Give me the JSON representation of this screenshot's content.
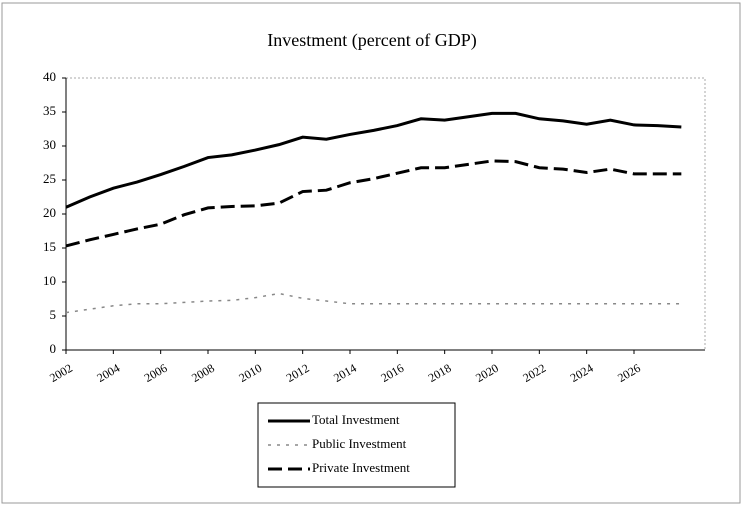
{
  "chart_data": {
    "type": "line",
    "title": "Investment (percent of GDP)",
    "x": [
      2002,
      2003,
      2004,
      2005,
      2006,
      2007,
      2008,
      2009,
      2010,
      2011,
      2012,
      2013,
      2014,
      2015,
      2016,
      2017,
      2018,
      2019,
      2020,
      2021,
      2022,
      2023,
      2024,
      2025,
      2026,
      2027,
      2028
    ],
    "series": [
      {
        "name": "Total Investment",
        "color": "#000000",
        "dash": "solid",
        "values": [
          21,
          22.5,
          23.8,
          24.7,
          25.8,
          27,
          28.3,
          28.7,
          29.4,
          30.2,
          31.3,
          31,
          31.7,
          32.3,
          33,
          34,
          33.8,
          34.3,
          34.8,
          34.8,
          34,
          33.7,
          33.2,
          33.8,
          33.1,
          33,
          32.8
        ]
      },
      {
        "name": "Public Investment",
        "color": "#888888",
        "dash": "dotted",
        "values": [
          5.5,
          6,
          6.5,
          6.8,
          6.8,
          7,
          7.2,
          7.3,
          7.7,
          8.3,
          7.6,
          7.2,
          6.8,
          6.8,
          6.8,
          6.8,
          6.8,
          6.8,
          6.8,
          6.8,
          6.8,
          6.8,
          6.8,
          6.8,
          6.8,
          6.8,
          6.8
        ]
      },
      {
        "name": "Private Investment",
        "color": "#000000",
        "dash": "dashed",
        "values": [
          15.3,
          16.2,
          17,
          17.8,
          18.5,
          19.9,
          20.9,
          21.1,
          21.2,
          21.6,
          23.3,
          23.5,
          24.6,
          25.2,
          26,
          26.8,
          26.8,
          27.3,
          27.8,
          27.7,
          26.8,
          26.6,
          26.1,
          26.6,
          25.9,
          25.9,
          25.9
        ]
      }
    ],
    "xlim": [
      2002,
      2029
    ],
    "xticks": [
      2002,
      2004,
      2006,
      2008,
      2010,
      2012,
      2014,
      2016,
      2018,
      2020,
      2022,
      2024,
      2026
    ],
    "ylim": [
      0,
      40
    ],
    "yticks": [
      0,
      5,
      10,
      15,
      20,
      25,
      30,
      35,
      40
    ],
    "grid": false,
    "legend": "bottom"
  }
}
